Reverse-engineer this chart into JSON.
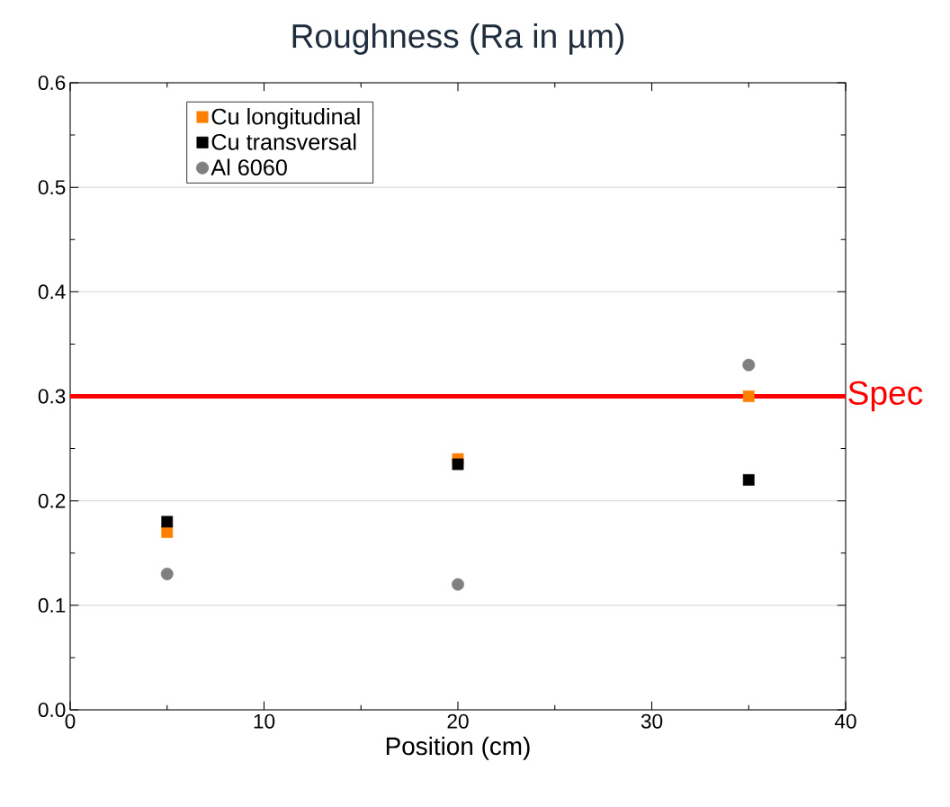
{
  "chart_data": {
    "type": "scatter",
    "title": "Roughness (Ra in µm)",
    "xlabel": "Position (cm)",
    "x": [
      5,
      20,
      35
    ],
    "series": [
      {
        "name": "Cu longitudinal",
        "color": "#ff8000",
        "marker": "square",
        "values": [
          0.17,
          0.24,
          0.3
        ]
      },
      {
        "name": "Cu transversal",
        "color": "#000000",
        "marker": "square",
        "values": [
          0.18,
          0.235,
          0.22
        ]
      },
      {
        "name": "Al 6060",
        "color": "#808080",
        "marker": "circle",
        "values": [
          0.13,
          0.12,
          0.33
        ]
      }
    ],
    "xlim": [
      0,
      40
    ],
    "xticks": [
      0,
      10,
      20,
      30,
      40
    ],
    "ylim": [
      0,
      0.6
    ],
    "yticks": [
      {
        "value": 0,
        "label": "0.0"
      },
      {
        "value": 0.1,
        "label": "0.1"
      },
      {
        "value": 0.2,
        "label": "0.2"
      },
      {
        "value": 0.3,
        "label": "0.3"
      },
      {
        "value": 0.4,
        "label": "0.4"
      },
      {
        "value": 0.5,
        "label": "0.5"
      },
      {
        "value": 0.6,
        "label": "0.6"
      }
    ],
    "ref_lines": [
      {
        "axis": "y",
        "value": 0.3,
        "label": "Spec",
        "color": "#ff0000"
      }
    ],
    "grid": "y",
    "legend": "top left"
  }
}
